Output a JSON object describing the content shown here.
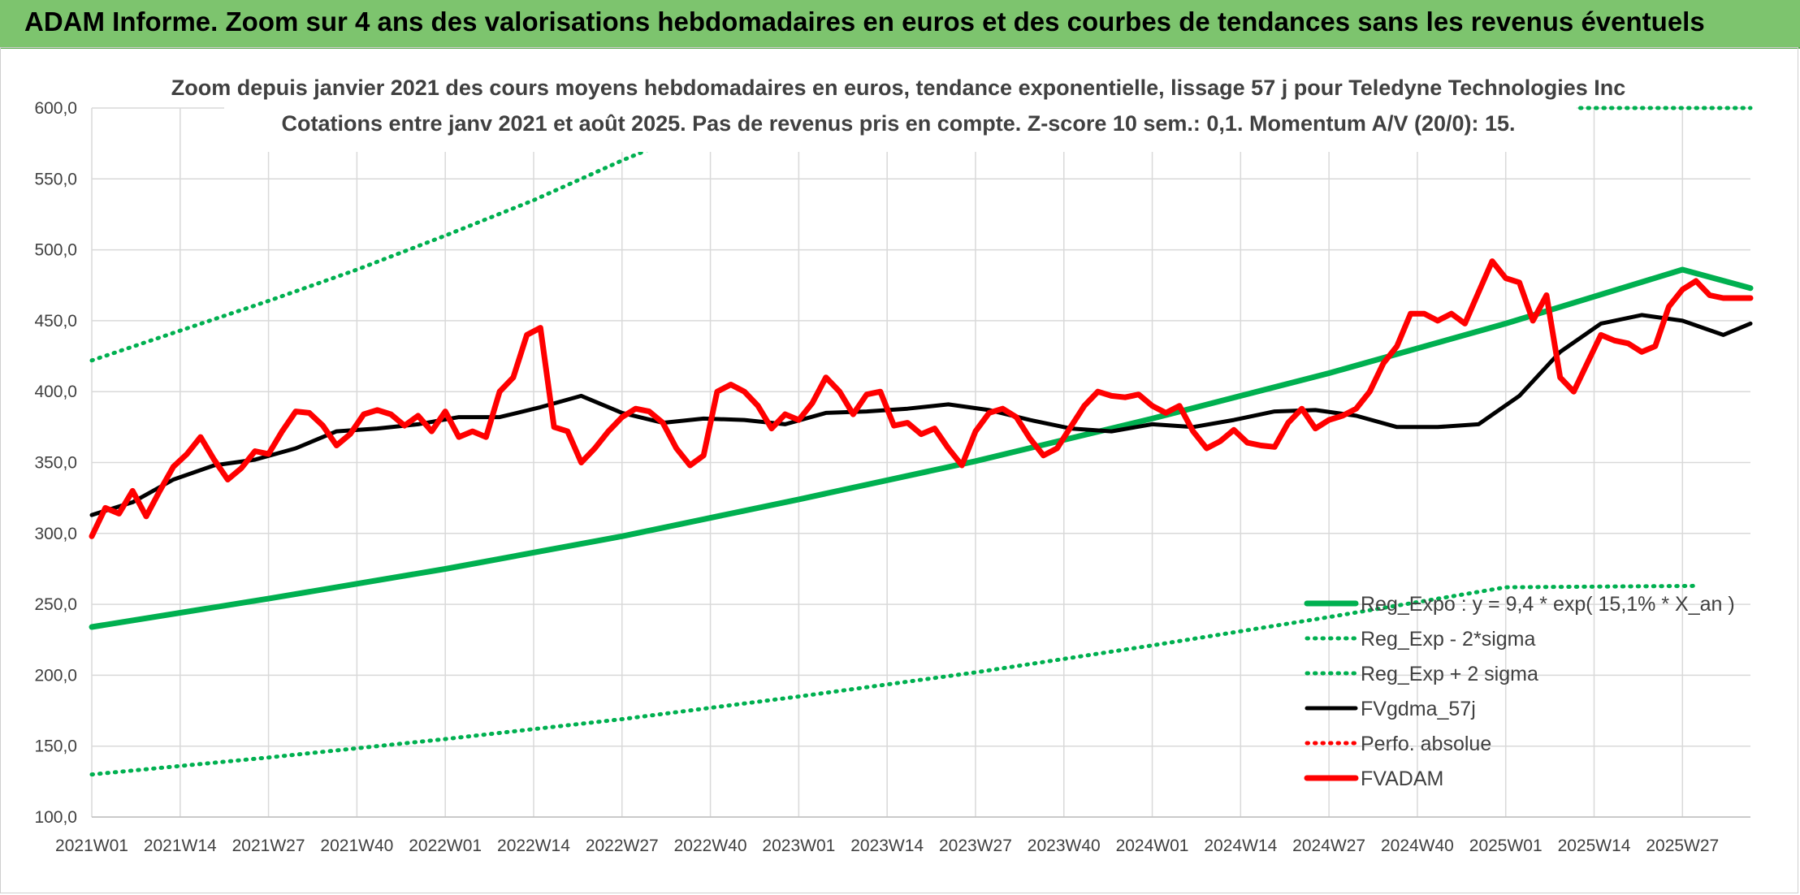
{
  "banner": {
    "title": "ADAM Informe. Zoom sur 4 ans des valorisations hebdomadaires en euros et des courbes de tendances sans les revenus éventuels"
  },
  "colors": {
    "banner_bg": "#7dc46e",
    "reg_expo": "#00b050",
    "fvgdma": "#000000",
    "fvadam": "#ff0000",
    "grid": "#d9d9d9"
  },
  "chart_data": {
    "type": "line",
    "title_lines": [
      "Zoom depuis janvier 2021 des cours moyens hebdomadaires en euros, tendance exponentielle, lissage 57 j pour Teledyne Technologies Inc",
      "Cotations entre janv 2021 et août 2025. Pas de revenus pris en compte. Z-score 10 sem.: 0,1. Momentum A/V (20/0): 15."
    ],
    "ylim": [
      100,
      600
    ],
    "y_ticks": [
      "100,0",
      "150,0",
      "200,0",
      "250,0",
      "300,0",
      "350,0",
      "400,0",
      "450,0",
      "500,0",
      "550,0",
      "600,0"
    ],
    "x_ticks": [
      "2021W01",
      "2021W14",
      "2021W27",
      "2021W40",
      "2022W01",
      "2022W14",
      "2022W27",
      "2022W40",
      "2023W01",
      "2023W14",
      "2023W27",
      "2023W40",
      "2024W01",
      "2024W14",
      "2024W27",
      "2024W40",
      "2025W01",
      "2025W14",
      "2025W27"
    ],
    "grid": true,
    "legend_position": "bottom-right",
    "legend": [
      {
        "label": "Reg_Expo : y = 9,4 * exp( 15,1% * X_an )",
        "style": "solid-thick",
        "color": "#00b050"
      },
      {
        "label": "Reg_Exp - 2*sigma",
        "style": "dotted",
        "color": "#00b050"
      },
      {
        "label": "Reg_Exp + 2 sigma",
        "style": "dotted",
        "color": "#00b050"
      },
      {
        "label": "FVgdma_57j",
        "style": "solid",
        "color": "#000000"
      },
      {
        "label": "Perfo. absolue",
        "style": "dotted",
        "color": "#ff0000"
      },
      {
        "label": "FVADAM",
        "style": "solid-thick",
        "color": "#ff0000"
      }
    ],
    "series": [
      {
        "name": "Reg_Expo : y = 9,4 * exp( 15,1% * X_an )",
        "x_week": [
          0,
          26,
          52,
          78,
          104,
          130,
          156,
          182,
          208,
          234,
          244
        ],
        "values": [
          234,
          254,
          275,
          298,
          324,
          351,
          381,
          413,
          448,
          486,
          473
        ]
      },
      {
        "name": "Reg_Exp - 2*sigma",
        "x_week": [
          0,
          26,
          52,
          78,
          104,
          130,
          156,
          182,
          208,
          236
        ],
        "values": [
          130,
          142,
          155,
          169,
          185,
          202,
          221,
          241,
          262,
          263
        ]
      },
      {
        "name": "Reg_Exp + 2 sigma",
        "x_week": [
          0,
          13,
          26,
          39,
          52,
          65,
          78,
          84
        ],
        "values": [
          422,
          443,
          464,
          486,
          510,
          535,
          563,
          575
        ]
      },
      {
        "name": "FVgdma_57j",
        "x_week": [
          0,
          6,
          12,
          18,
          24,
          30,
          36,
          42,
          48,
          54,
          60,
          66,
          72,
          78,
          84,
          90,
          96,
          102,
          108,
          114,
          120,
          126,
          132,
          138,
          144,
          150,
          156,
          162,
          168,
          174,
          180,
          186,
          192,
          198,
          204,
          210,
          216,
          222,
          228,
          234,
          240,
          244
        ],
        "values": [
          313,
          322,
          338,
          348,
          352,
          360,
          372,
          374,
          377,
          382,
          382,
          389,
          397,
          385,
          378,
          381,
          380,
          377,
          385,
          386,
          388,
          391,
          387,
          380,
          374,
          372,
          377,
          375,
          380,
          386,
          387,
          383,
          375,
          375,
          377,
          397,
          428,
          448,
          454,
          450,
          440,
          448
        ]
      },
      {
        "name": "FVADAM",
        "x_week": [
          0,
          2,
          4,
          6,
          8,
          10,
          12,
          14,
          16,
          18,
          20,
          22,
          24,
          26,
          28,
          30,
          32,
          34,
          36,
          38,
          40,
          42,
          44,
          46,
          48,
          50,
          52,
          54,
          56,
          58,
          60,
          62,
          64,
          66,
          68,
          70,
          72,
          74,
          76,
          78,
          80,
          82,
          84,
          86,
          88,
          90,
          92,
          94,
          96,
          98,
          100,
          102,
          104,
          106,
          108,
          110,
          112,
          114,
          116,
          118,
          120,
          122,
          124,
          126,
          128,
          130,
          132,
          134,
          136,
          138,
          140,
          142,
          144,
          146,
          148,
          150,
          152,
          154,
          156,
          158,
          160,
          162,
          164,
          166,
          168,
          170,
          172,
          174,
          176,
          178,
          180,
          182,
          184,
          186,
          188,
          190,
          192,
          194,
          196,
          198,
          200,
          202,
          204,
          206,
          208,
          210,
          212,
          214,
          216,
          218,
          220,
          222,
          224,
          226,
          228,
          230,
          232,
          234,
          236,
          238,
          240,
          242,
          244
        ],
        "values": [
          298,
          318,
          314,
          330,
          312,
          330,
          347,
          356,
          368,
          352,
          338,
          346,
          358,
          356,
          372,
          386,
          385,
          376,
          362,
          370,
          384,
          387,
          384,
          376,
          383,
          372,
          386,
          368,
          372,
          368,
          400,
          410,
          440,
          445,
          375,
          372,
          350,
          360,
          372,
          382,
          388,
          386,
          378,
          360,
          348,
          355,
          400,
          405,
          400,
          390,
          374,
          384,
          380,
          392,
          410,
          400,
          384,
          398,
          400,
          376,
          378,
          370,
          374,
          360,
          348,
          372,
          385,
          388,
          382,
          367,
          355,
          360,
          375,
          390,
          400,
          397,
          396,
          398,
          390,
          385,
          390,
          372,
          360,
          365,
          373,
          364,
          362,
          361,
          378,
          388,
          374,
          380,
          383,
          388,
          400,
          420,
          432,
          455,
          455,
          450,
          455,
          448,
          470,
          492,
          480,
          477,
          450,
          468,
          410,
          400,
          420,
          440,
          436,
          434,
          428,
          432,
          460,
          472,
          478,
          468,
          466,
          466,
          466
        ]
      }
    ]
  }
}
